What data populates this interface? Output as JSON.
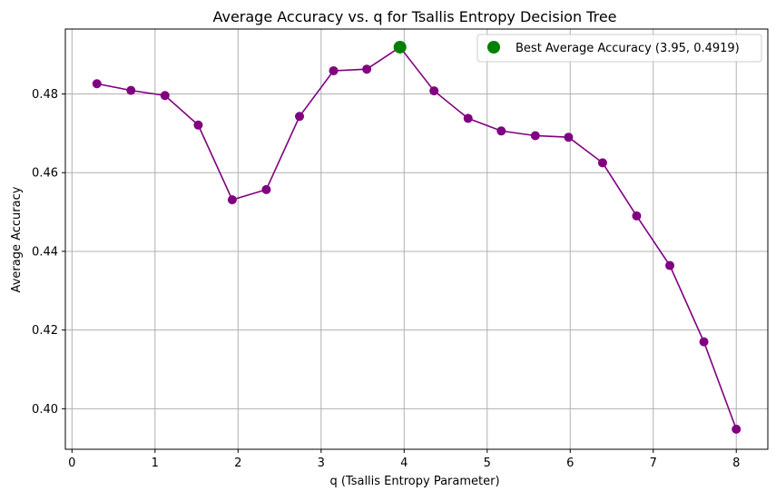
{
  "chart_data": {
    "type": "line",
    "title": "Average Accuracy vs. q for Tsallis Entropy Decision Tree",
    "xlabel": "q (Tsallis Entropy Parameter)",
    "ylabel": "Average Accuracy",
    "xlim": [
      -0.08,
      8.38
    ],
    "ylim": [
      0.3897,
      0.4965
    ],
    "xticks": [
      0,
      1,
      2,
      3,
      4,
      5,
      6,
      7,
      8
    ],
    "yticks": [
      0.4,
      0.42,
      0.44,
      0.46,
      0.48
    ],
    "xtick_labels": [
      "0",
      "1",
      "2",
      "3",
      "4",
      "5",
      "6",
      "7",
      "8"
    ],
    "ytick_labels": [
      "0.40",
      "0.42",
      "0.44",
      "0.46",
      "0.48"
    ],
    "grid": true,
    "legend_position": "top-right",
    "series": [
      {
        "color": "#800080",
        "x": [
          0.3,
          0.71,
          1.12,
          1.52,
          1.93,
          2.34,
          2.74,
          3.15,
          3.55,
          3.95,
          4.36,
          4.77,
          5.17,
          5.58,
          5.98,
          6.39,
          6.8,
          7.2,
          7.61,
          8.0
        ],
        "y": [
          0.4826,
          0.4809,
          0.4796,
          0.4721,
          0.4531,
          0.4557,
          0.4743,
          0.4859,
          0.4863,
          0.4919,
          0.4808,
          0.4738,
          0.4706,
          0.4694,
          0.469,
          0.4625,
          0.449,
          0.4364,
          0.417,
          0.3948
        ]
      }
    ],
    "best_point": {
      "x": 3.95,
      "y": 0.4919,
      "color": "#008000",
      "legend_label": "Best Average Accuracy (3.95, 0.4919)"
    }
  }
}
